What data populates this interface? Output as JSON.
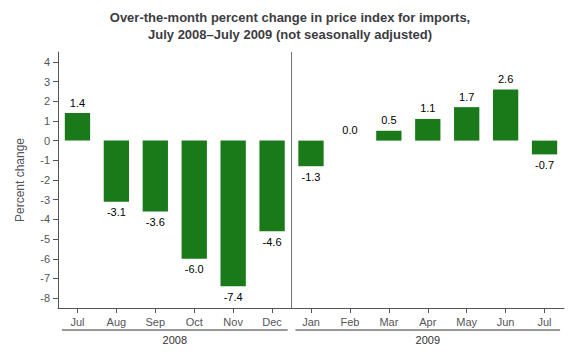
{
  "chart_data": {
    "type": "bar",
    "title": "Over-the-month percent change in price index for imports,\nJuly 2008–July 2009 (not seasonally adjusted)",
    "categories": [
      "Jul",
      "Aug",
      "Sep",
      "Oct",
      "Nov",
      "Dec",
      "Jan",
      "Feb",
      "Mar",
      "Apr",
      "May",
      "Jun",
      "Jul"
    ],
    "values": [
      1.4,
      -3.1,
      -3.6,
      -6.0,
      -7.4,
      -4.6,
      -1.3,
      0.0,
      0.5,
      1.1,
      1.7,
      2.6,
      -0.7
    ],
    "value_labels": [
      "1.4",
      "-3.1",
      "-3.6",
      "-6.0",
      "-7.4",
      "-4.6",
      "-1.3",
      "0.0",
      "0.5",
      "1.1",
      "1.7",
      "2.6",
      "-0.7"
    ],
    "color": "#1a7a1a",
    "ylabel": "Percent change",
    "ylim": [
      -8.5,
      4.5
    ],
    "yticks": [
      -8,
      -7,
      -6,
      -5,
      -4,
      -3,
      -2,
      -1,
      0,
      1,
      2,
      3,
      4
    ],
    "annotations": [
      {
        "text": "2008",
        "start": 0,
        "end": 5
      },
      {
        "text": "2009",
        "start": 6,
        "end": 12
      }
    ],
    "data_labels": true,
    "grid": false
  }
}
